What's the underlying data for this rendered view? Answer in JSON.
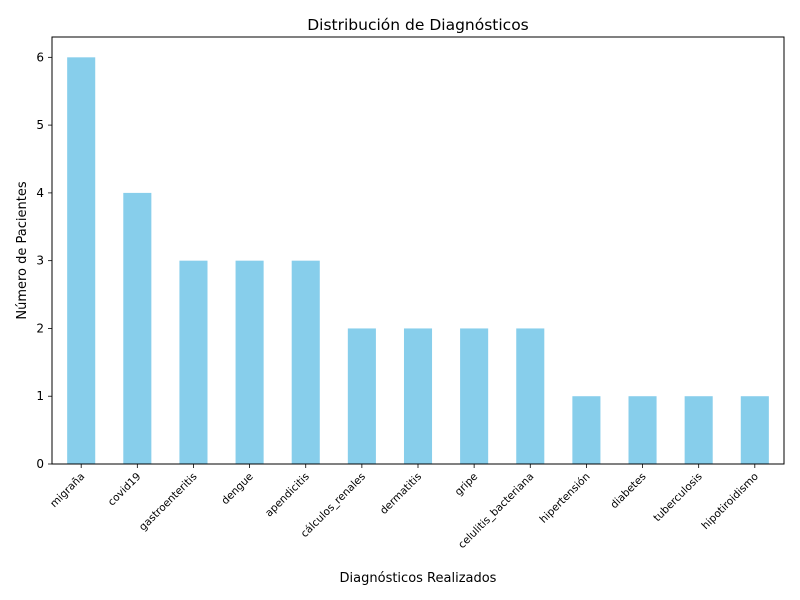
{
  "chart_data": {
    "type": "bar",
    "title": "Distribución de Diagnósticos",
    "xlabel": "Diagnósticos Realizados",
    "ylabel": "Número de Pacientes",
    "categories": [
      "migraña",
      "covid19",
      "gastroenteritis",
      "dengue",
      "apendicitis",
      "cálculos_renales",
      "dermatitis",
      "gripe",
      "celulitis_bacteriana",
      "hipertensión",
      "diabetes",
      "tuberculosis",
      "hipotiroidismo"
    ],
    "values": [
      6,
      4,
      3,
      3,
      3,
      2,
      2,
      2,
      2,
      1,
      1,
      1,
      1
    ],
    "ylim": [
      0,
      6.3
    ],
    "yticks": [
      0,
      1,
      2,
      3,
      4,
      5,
      6
    ],
    "bar_color": "#87ceeb",
    "grid": false,
    "legend": "none"
  }
}
